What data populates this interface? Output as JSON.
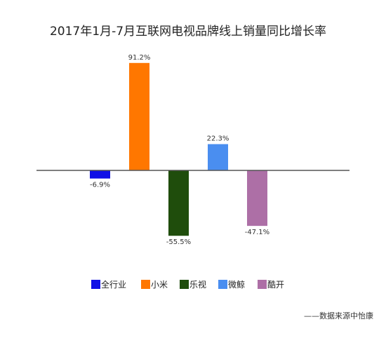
{
  "chart_data": {
    "type": "bar",
    "title": "2017年1月-7月互联网电视品牌线上销量同比增长率",
    "categories": [
      "全行业",
      "小米",
      "乐视",
      "微鲸",
      "酷开"
    ],
    "values": [
      -6.9,
      91.2,
      -55.5,
      22.3,
      -47.1
    ],
    "value_labels": [
      "-6.9%",
      "91.2%",
      "-55.5%",
      "22.3%",
      "-47.1%"
    ],
    "colors": [
      "#1010e6",
      "#ff7700",
      "#1f4d0c",
      "#4a8ef0",
      "#ad6fa6"
    ],
    "unit": "%",
    "ylim": [
      -65,
      100
    ],
    "grid": false,
    "legend": "bottom",
    "source": "——数据来源中怡康"
  }
}
